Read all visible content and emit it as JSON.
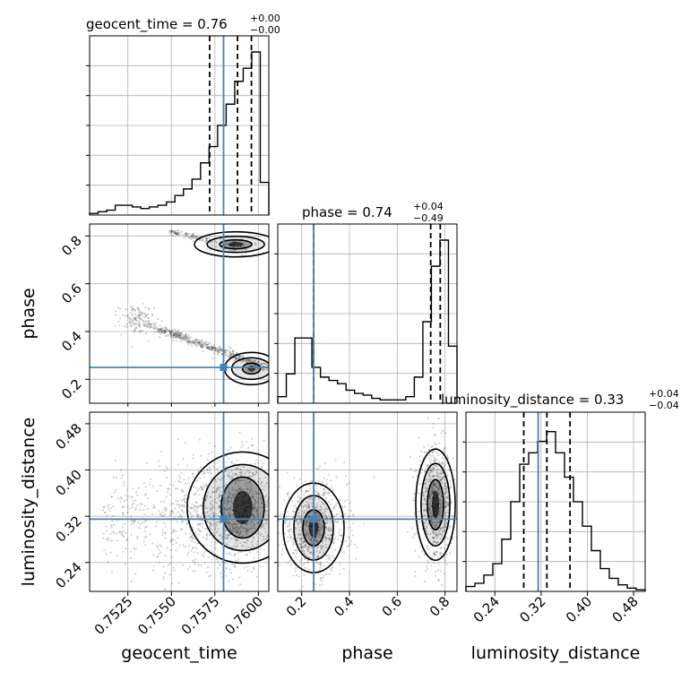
{
  "chart_data": {
    "type": "corner",
    "truth_color": "#4682b4",
    "params": [
      {
        "name": "geocent_time",
        "range": [
          0.7503,
          0.7606
        ],
        "ticks": [
          0.7525,
          0.755,
          0.7575,
          0.76
        ],
        "ticklabels": [
          "0.7525",
          "0.7550",
          "0.7575",
          "0.7600"
        ],
        "truth": 0.758,
        "quantiles": [
          0.7572,
          0.7588,
          0.7596
        ]
      },
      {
        "name": "phase",
        "range": [
          0.1,
          0.85
        ],
        "ticks": [
          0.2,
          0.4,
          0.6,
          0.8
        ],
        "ticklabels": [
          "0.2",
          "0.4",
          "0.6",
          "0.8"
        ],
        "truth": 0.25,
        "quantiles": [
          0.25,
          0.74,
          0.78
        ]
      },
      {
        "name": "luminosity_distance",
        "range": [
          0.19,
          0.5
        ],
        "ticks": [
          0.24,
          0.32,
          0.4,
          0.48
        ],
        "ticklabels": [
          "0.24",
          "0.32",
          "0.40",
          "0.48"
        ],
        "truth": 0.315,
        "quantiles": [
          0.29,
          0.33,
          0.37
        ]
      }
    ],
    "titles": [
      {
        "text": "geocent_time = 0.76",
        "sup": "+0.00",
        "sub": "−0.00"
      },
      {
        "text": "phase = 0.74",
        "sup": "+0.04",
        "sub": "−0.49"
      },
      {
        "text": "luminosity_distance = 0.33",
        "sup": "+0.04",
        "sub": "−0.04"
      }
    ],
    "histograms": [
      {
        "param": "geocent_time",
        "bins": [
          0.7503,
          0.7606
        ],
        "counts": [
          0.01,
          0.02,
          0.03,
          0.06,
          0.06,
          0.05,
          0.04,
          0.05,
          0.06,
          0.08,
          0.12,
          0.16,
          0.22,
          0.32,
          0.42,
          0.55,
          0.68,
          0.82,
          0.9,
          1.0,
          0.2
        ]
      },
      {
        "param": "phase",
        "bins": [
          0.1,
          0.85
        ],
        "counts": [
          0.04,
          0.18,
          0.4,
          0.4,
          0.22,
          0.16,
          0.14,
          0.12,
          0.08,
          0.06,
          0.05,
          0.03,
          0.02,
          0.02,
          0.02,
          0.04,
          0.16,
          0.5,
          0.84,
          1.0,
          0.35
        ]
      },
      {
        "param": "luminosity_distance",
        "bins": [
          0.19,
          0.5
        ],
        "counts": [
          0.03,
          0.05,
          0.1,
          0.17,
          0.32,
          0.55,
          0.78,
          0.85,
          0.92,
          0.98,
          0.85,
          0.7,
          0.55,
          0.4,
          0.25,
          0.14,
          0.08,
          0.04,
          0.02,
          0.01
        ]
      }
    ],
    "panels_2d": [
      {
        "x": "geocent_time",
        "y": "phase",
        "contour_centers": [
          [
            0.7587,
            0.765
          ],
          [
            0.7596,
            0.245
          ]
        ]
      },
      {
        "x": "geocent_time",
        "y": "luminosity_distance",
        "contour_centers": [
          [
            0.7591,
            0.335
          ]
        ]
      },
      {
        "x": "phase",
        "y": "luminosity_distance",
        "contour_centers": [
          [
            0.25,
            0.3
          ],
          [
            0.76,
            0.34
          ]
        ]
      }
    ]
  }
}
